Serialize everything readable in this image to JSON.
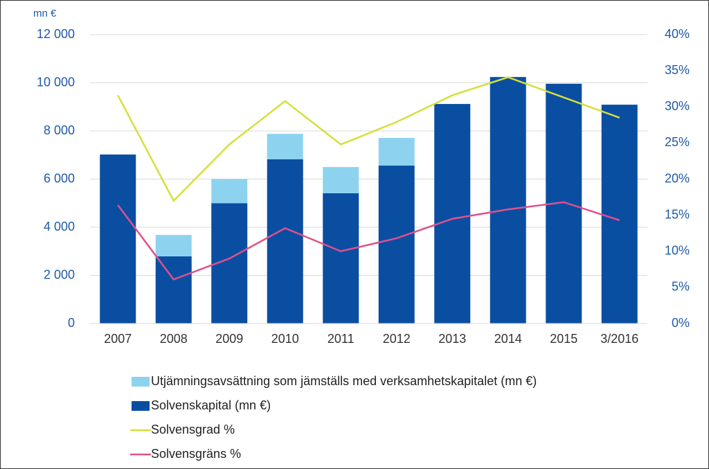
{
  "chart_data": {
    "type": "bar",
    "y_label": "mn €",
    "categories": [
      "2007",
      "2008",
      "2009",
      "2010",
      "2011",
      "2012",
      "2013",
      "2014",
      "2015",
      "3/2016"
    ],
    "series": [
      {
        "name": "Utjämningsavsättning som jämställs med verksamhetskapitalet (mn €)",
        "type": "bar",
        "stacked_on": 1,
        "color": "#8dd3f0",
        "values": [
          null,
          890,
          1000,
          1060,
          1090,
          1150,
          null,
          null,
          null,
          null
        ]
      },
      {
        "name": "Solvenskapital (mn €)",
        "type": "bar",
        "color": "#0a4ea2",
        "values": [
          7020,
          2790,
          5000,
          6820,
          5410,
          6560,
          9120,
          10240,
          9960,
          9090
        ]
      },
      {
        "name": "Solvensgrad %",
        "type": "line",
        "axis": "y2",
        "color": "#d4e03a",
        "values": [
          31.6,
          17.0,
          24.8,
          30.8,
          24.8,
          27.9,
          31.6,
          34.1,
          31.3,
          28.5
        ]
      },
      {
        "name": "Solvensgräns %",
        "type": "line",
        "axis": "y2",
        "color": "#e0508a",
        "values": [
          16.4,
          6.1,
          9.0,
          13.2,
          10.0,
          11.8,
          14.5,
          15.8,
          16.8,
          14.3
        ]
      }
    ],
    "ylim": [
      0,
      12000
    ],
    "yticks": [
      {
        "value": 0,
        "label": "0"
      },
      {
        "value": 2000,
        "label": "2 000"
      },
      {
        "value": 4000,
        "label": "4 000"
      },
      {
        "value": 6000,
        "label": "6 000"
      },
      {
        "value": 8000,
        "label": "8 000"
      },
      {
        "value": 10000,
        "label": "10 000"
      },
      {
        "value": 12000,
        "label": "12 000"
      }
    ],
    "y2lim": [
      0,
      40
    ],
    "y2ticks": [
      {
        "value": 0,
        "label": "0%"
      },
      {
        "value": 5,
        "label": "5%"
      },
      {
        "value": 10,
        "label": "10%"
      },
      {
        "value": 15,
        "label": "15%"
      },
      {
        "value": 20,
        "label": "20%"
      },
      {
        "value": 25,
        "label": "25%"
      },
      {
        "value": 30,
        "label": "30%"
      },
      {
        "value": 35,
        "label": "35%"
      },
      {
        "value": 40,
        "label": "40%"
      }
    ],
    "grid": true,
    "legend": "bottom"
  }
}
